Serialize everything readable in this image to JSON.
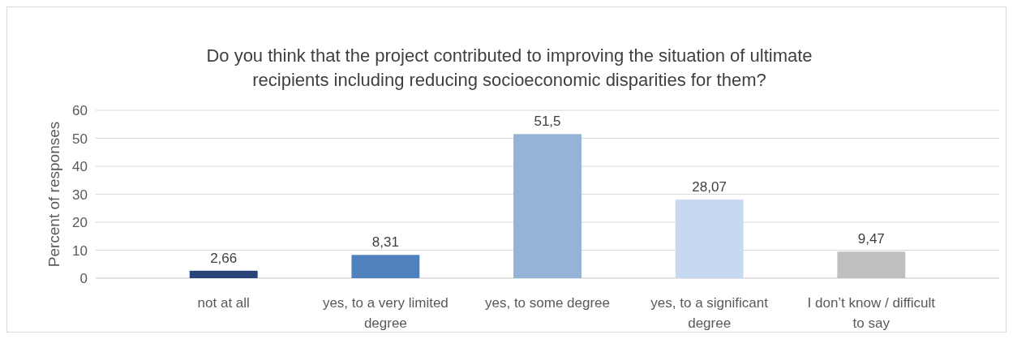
{
  "chart_data": {
    "type": "bar",
    "title": "Do you think that the project contributed to improving the situation of ultimate recipients including reducing socioeconomic disparities for them?",
    "ylabel": "Percent of responses",
    "categories": [
      "not at all",
      "yes, to a very limited degree",
      "yes, to some degree",
      "yes, to a significant degree",
      "I don’t know / difficult to say"
    ],
    "values": [
      2.66,
      8.31,
      51.5,
      28.07,
      9.47
    ],
    "colors": [
      "#264478",
      "#4f81bd",
      "#95b3d7",
      "#c6d9f1",
      "#bfbfbf"
    ],
    "value_labels": [
      "2,66",
      "8,31",
      "51,5",
      "28,07",
      "9,47"
    ],
    "ylim": [
      0,
      60
    ],
    "yticks": [
      0,
      10,
      20,
      30,
      40,
      50,
      60
    ],
    "grid": "y"
  }
}
